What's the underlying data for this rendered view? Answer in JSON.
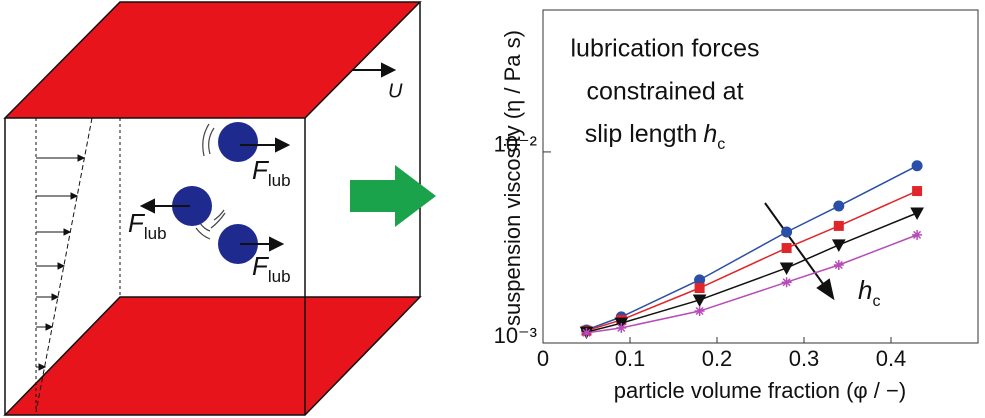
{
  "diagram": {
    "velocity_label": "U",
    "forces": [
      {
        "symbol": "F",
        "subscript": "lub"
      },
      {
        "symbol": "F",
        "subscript": "lub"
      },
      {
        "symbol": "F",
        "subscript": "lub"
      }
    ]
  },
  "chart_data": {
    "type": "line",
    "xlabel": "particle volume fraction (φ / −)",
    "ylabel": "suspension viscosity (η / Pa s)",
    "annotation": {
      "lines": [
        "lubrication forces",
        "constrained at",
        "slip length"
      ],
      "symbol": "h",
      "subscript": "c"
    },
    "arrow_label": {
      "symbol": "h",
      "subscript": "c"
    },
    "x": [
      0.05,
      0.09,
      0.18,
      0.28,
      0.34,
      0.43
    ],
    "series": [
      {
        "color": "#2a4fa8",
        "marker": "circle",
        "values": [
          0.00117,
          0.00137,
          0.00214,
          0.00381,
          0.00521,
          0.00846
        ]
      },
      {
        "color": "#e0262a",
        "marker": "square",
        "values": [
          0.00116,
          0.00132,
          0.00194,
          0.00314,
          0.0041,
          0.00624
        ]
      },
      {
        "color": "#111111",
        "marker": "triangle-down",
        "values": [
          0.00114,
          0.00127,
          0.00168,
          0.00247,
          0.00326,
          0.00479
        ]
      },
      {
        "color": "#b84bb8",
        "marker": "asterisk",
        "values": [
          0.00113,
          0.0012,
          0.00147,
          0.00208,
          0.00256,
          0.00368
        ]
      }
    ],
    "xlim": [
      0,
      0.5
    ],
    "xticks": [
      0,
      0.1,
      0.2,
      0.3,
      0.4
    ],
    "ylim": [
      0.001,
      0.0553
    ],
    "yscale": "log",
    "yticks": [
      {
        "value": 0.001,
        "label": "10⁻³"
      },
      {
        "value": 0.01,
        "label": "10⁻²"
      }
    ],
    "grid": false
  }
}
